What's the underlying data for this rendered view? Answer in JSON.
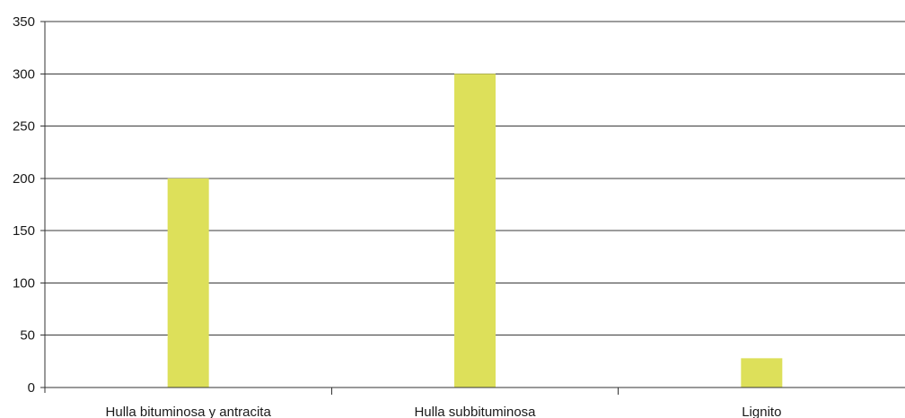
{
  "chart_data": {
    "type": "bar",
    "categories": [
      "Hulla bituminosa y antracita",
      "Hulla subbituminosa",
      "Lignito"
    ],
    "values": [
      200,
      300,
      28
    ],
    "title": "",
    "xlabel": "",
    "ylabel": "",
    "ylim": [
      0,
      350
    ],
    "yticks": [
      0,
      50,
      100,
      150,
      200,
      250,
      300,
      350
    ],
    "grid": true,
    "legend": "none",
    "bar_color": "#dde05a",
    "axis_color": "#333333"
  }
}
